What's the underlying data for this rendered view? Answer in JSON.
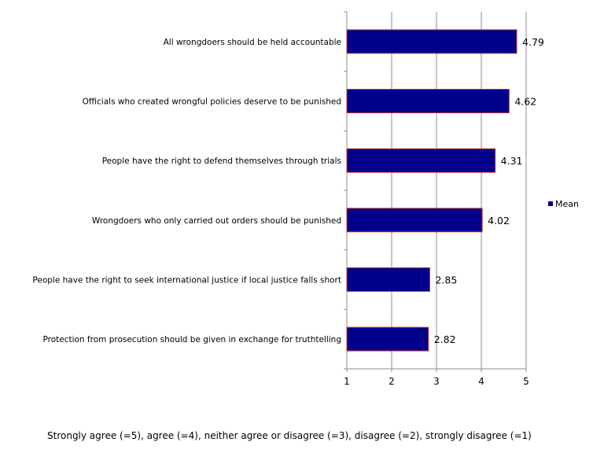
{
  "chart_data": {
    "type": "bar",
    "orientation": "horizontal",
    "categories": [
      "All wrongdoers should be held accountable",
      "Officials who created wrongful policies deserve to be punished",
      "People have the right to defend themselves through trials",
      "Wrongdoers who only carried out orders should be punished",
      "People have the right to seek international justice if local justice falls short",
      "Protection from prosecution should be given in exchange for truthtelling"
    ],
    "series": [
      {
        "name": "Mean",
        "values": [
          4.79,
          4.62,
          4.31,
          4.02,
          2.85,
          2.82
        ],
        "color": "#00008B",
        "border_color": "#CC3333"
      }
    ],
    "data_labels": [
      "4.79",
      "4.62",
      "4.31",
      "4.02",
      "2.85",
      "2.82"
    ],
    "xlim": [
      1,
      5
    ],
    "xticks": [
      1,
      2,
      3,
      4,
      5
    ],
    "grid": "vertical",
    "legend_position": "right"
  },
  "footnote": "Strongly agree (=5), agree (=4), neither agree or disagree (=3), disagree (=2), strongly disagree (=1)"
}
